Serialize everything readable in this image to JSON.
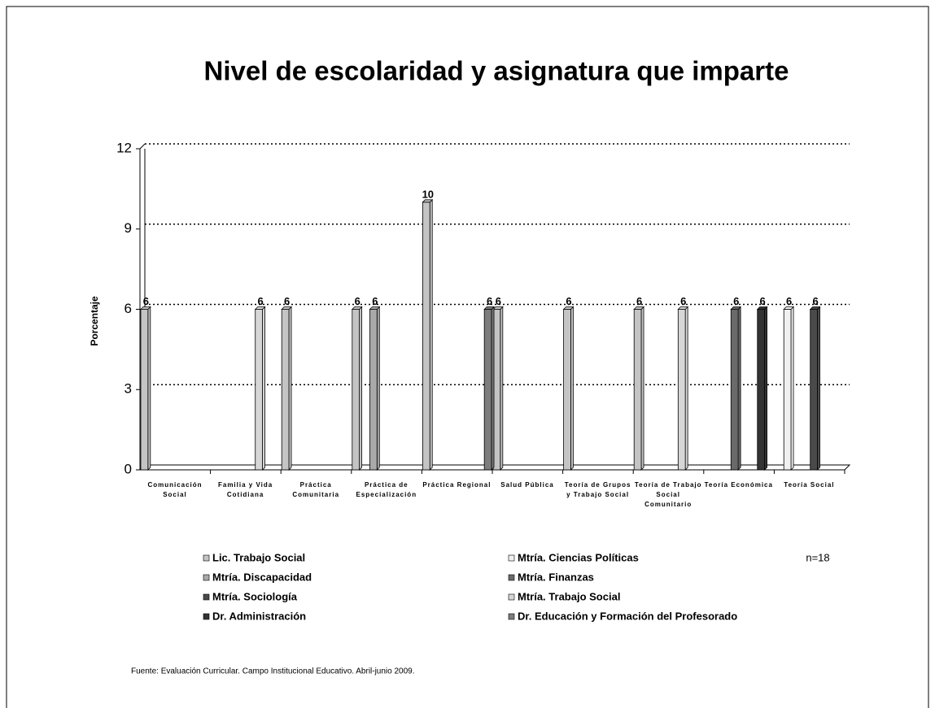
{
  "chart_data": {
    "type": "bar",
    "title": "Nivel de escolaridad y asignatura que imparte",
    "y_label": "Porcentaje",
    "categories": [
      "Comunicación Social",
      "Familia y Vida Cotidiana",
      "Práctica Comunitaria",
      "Práctica de Especialización",
      "Práctica Regional",
      "Salud Pública",
      "Teoría de Grupos y Trabajo Social",
      "Teoría de Trabajo Social Comunitario",
      "Teoría Económica",
      "Teoría Social"
    ],
    "series": [
      {
        "name": "Lic. Trabajo Social",
        "color": "#c4c4c4",
        "values": [
          6,
          null,
          6,
          6,
          10,
          6,
          6,
          6,
          null,
          null
        ]
      },
      {
        "name": "Mtría. Ciencias Políticas",
        "color": "#f0f0f0",
        "values": [
          null,
          null,
          null,
          null,
          null,
          null,
          null,
          null,
          null,
          6
        ]
      },
      {
        "name": "Mtría. Discapacidad",
        "color": "#a9a9a9",
        "values": [
          null,
          null,
          null,
          6,
          null,
          null,
          null,
          null,
          null,
          null
        ]
      },
      {
        "name": "Mtría. Finanzas",
        "color": "#6a6a6a",
        "values": [
          null,
          null,
          null,
          null,
          null,
          null,
          null,
          null,
          6,
          null
        ]
      },
      {
        "name": "Mtría. Sociología",
        "color": "#4a4a4a",
        "values": [
          null,
          null,
          null,
          null,
          null,
          null,
          null,
          null,
          null,
          6
        ]
      },
      {
        "name": "Mtría. Trabajo Social",
        "color": "#d6d6d6",
        "values": [
          null,
          6,
          null,
          null,
          null,
          null,
          null,
          6,
          null,
          null
        ]
      },
      {
        "name": "Dr. Administración",
        "color": "#333333",
        "values": [
          null,
          null,
          null,
          null,
          null,
          null,
          null,
          null,
          6,
          null
        ]
      },
      {
        "name": "Dr. Educación y Formación del Profesorado",
        "color": "#7d7d7d",
        "values": [
          null,
          null,
          null,
          null,
          6,
          null,
          null,
          null,
          null,
          null
        ]
      }
    ],
    "ylim": [
      0,
      12
    ],
    "yticks": [
      0,
      3,
      6,
      9,
      12
    ],
    "grid": true,
    "annotation": "n=18",
    "source": "Fuente:  Evaluación Curricular. Campo Institucional Educativo. Abril-junio 2009."
  }
}
